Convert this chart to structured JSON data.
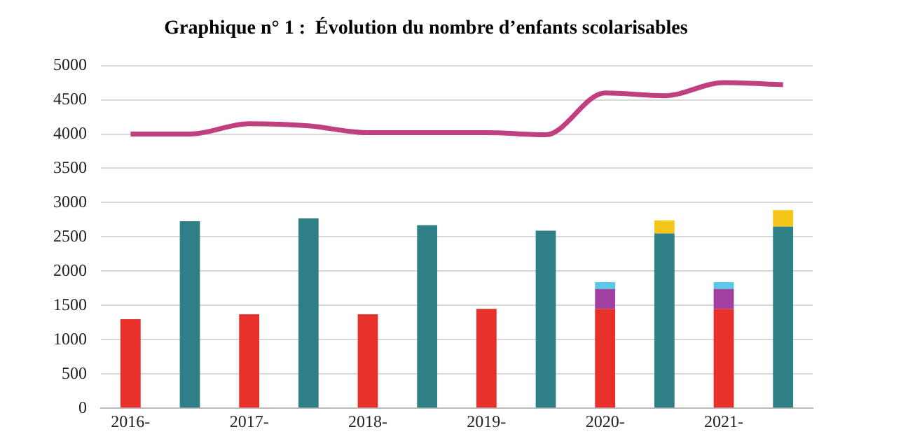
{
  "chart_data": {
    "type": "bar",
    "title": "Graphique n° 1 :  Évolution du nombre d’enfants scolarisables",
    "categories": [
      "2016-",
      null,
      "2017-",
      null,
      "2018-",
      null,
      "2019-",
      null,
      "2020-",
      null,
      "2021-",
      null
    ],
    "stacked": true,
    "series": [
      {
        "color": "#e8302a",
        "values": [
          1300,
          null,
          1370,
          null,
          1370,
          null,
          1450,
          null,
          1450,
          null,
          1450,
          null
        ]
      },
      {
        "color": "#a040a0",
        "values": [
          null,
          null,
          null,
          null,
          null,
          null,
          null,
          null,
          290,
          null,
          290,
          null
        ]
      },
      {
        "color": "#5bc8e8",
        "values": [
          null,
          null,
          null,
          null,
          null,
          null,
          null,
          null,
          100,
          null,
          100,
          null
        ]
      },
      {
        "color": "#2e7f86",
        "values": [
          null,
          2730,
          null,
          2770,
          null,
          2670,
          null,
          2590,
          null,
          2550,
          null,
          2650
        ]
      },
      {
        "color": "#f5c518",
        "values": [
          null,
          null,
          null,
          null,
          null,
          null,
          null,
          null,
          null,
          190,
          null,
          240
        ]
      },
      {
        "type": "line",
        "color": "#c0407f",
        "values": [
          4000,
          4000,
          4150,
          4120,
          4020,
          4020,
          4020,
          3990,
          4600,
          4560,
          4750,
          4720
        ]
      }
    ],
    "ylim": [
      0,
      5000
    ],
    "yticks": [
      0,
      500,
      1000,
      1500,
      2000,
      2500,
      3000,
      3500,
      4000,
      4500,
      5000
    ],
    "grid": "y",
    "legend": false
  }
}
